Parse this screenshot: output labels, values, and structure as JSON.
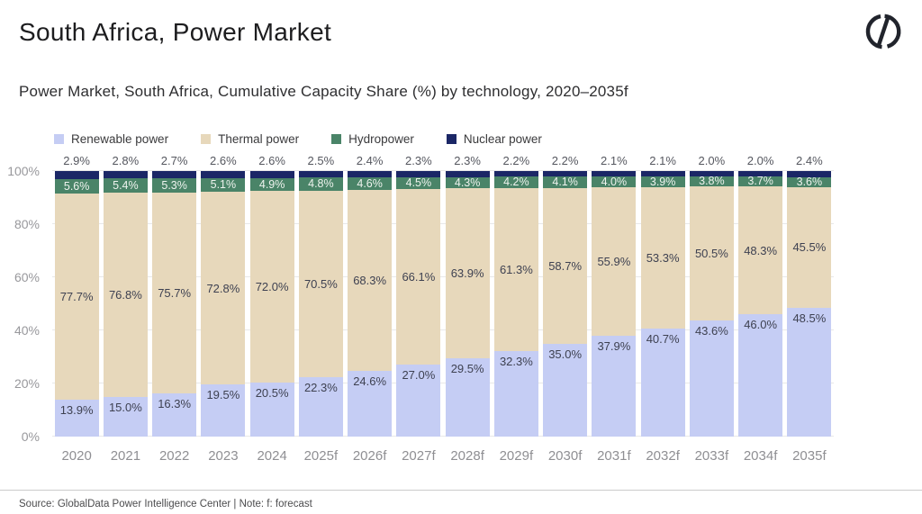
{
  "header": {
    "title": "South Africa, Power Market"
  },
  "footer": {
    "source": "Source: GlobalData Power Intelligence Center | Note: f: forecast"
  },
  "colors": {
    "renewable": "#c5cdf4",
    "thermal": "#e7d8bb",
    "hydro": "#4a8468",
    "nuclear": "#1b2766",
    "axis_text": "#98989c",
    "data_label": "#3e4151",
    "gridline": "#e8e8e8"
  },
  "chart_data": {
    "type": "bar",
    "stacked": true,
    "title": "Power Market, South Africa, Cumulative Capacity Share (%) by technology, 2020–2035f",
    "categories": [
      "2020",
      "2021",
      "2022",
      "2023",
      "2024",
      "2025f",
      "2026f",
      "2027f",
      "2028f",
      "2029f",
      "2030f",
      "2031f",
      "2032f",
      "2033f",
      "2034f",
      "2035f"
    ],
    "series": [
      {
        "key": "renewable",
        "name": "Renewable power",
        "color": "#c5cdf4",
        "values": [
          13.9,
          15.0,
          16.3,
          19.5,
          20.5,
          22.3,
          24.6,
          27.0,
          29.5,
          32.3,
          35.0,
          37.9,
          40.7,
          43.6,
          46.0,
          48.5
        ]
      },
      {
        "key": "thermal",
        "name": "Thermal power",
        "color": "#e7d8bb",
        "values": [
          77.7,
          76.8,
          75.7,
          72.8,
          72.0,
          70.5,
          68.3,
          66.1,
          63.9,
          61.3,
          58.7,
          55.9,
          53.3,
          50.5,
          48.3,
          45.5
        ]
      },
      {
        "key": "hydro",
        "name": "Hydropower",
        "color": "#4a8468",
        "values": [
          5.6,
          5.4,
          5.3,
          5.1,
          4.9,
          4.8,
          4.6,
          4.5,
          4.3,
          4.2,
          4.1,
          4.0,
          3.9,
          3.8,
          3.7,
          3.6
        ]
      },
      {
        "key": "nuclear",
        "name": "Nuclear power",
        "color": "#1b2766",
        "values": [
          2.9,
          2.8,
          2.7,
          2.6,
          2.6,
          2.5,
          2.4,
          2.3,
          2.3,
          2.2,
          2.2,
          2.1,
          2.1,
          2.0,
          2.0,
          2.4
        ]
      }
    ],
    "stack_order_top_to_bottom": [
      "nuclear",
      "hydro",
      "thermal",
      "renewable"
    ],
    "value_label_format": "one_decimal_percent",
    "y_ticks": [
      {
        "label": "100%",
        "value": 100
      },
      {
        "label": "80%",
        "value": 80
      },
      {
        "label": "60%",
        "value": 60
      },
      {
        "label": "40%",
        "value": 40
      },
      {
        "label": "20%",
        "value": 20
      },
      {
        "label": "0%",
        "value": 0
      }
    ],
    "ylim": [
      0,
      100
    ],
    "xlabel": "",
    "ylabel": "",
    "legend_position": "top-left",
    "grid": "horizontal"
  }
}
